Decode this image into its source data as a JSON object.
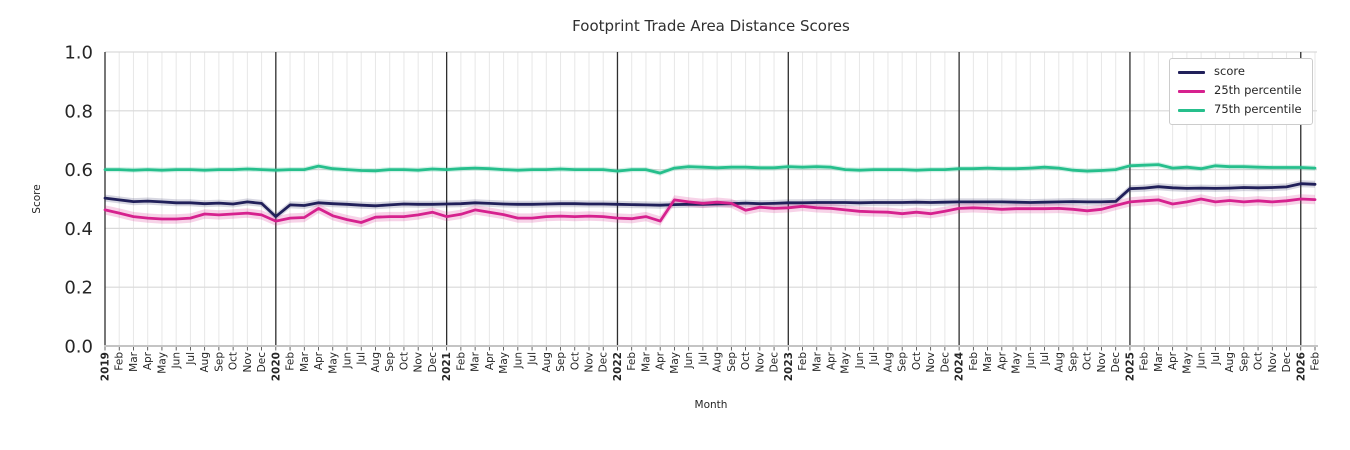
{
  "chart_data": {
    "type": "line",
    "title": "Footprint Trade Area Distance Scores",
    "xlabel": "Month",
    "ylabel": "Score",
    "ylim": [
      0.0,
      1.0
    ],
    "yticks": [
      0.0,
      0.2,
      0.4,
      0.6,
      0.8,
      1.0
    ],
    "grid": true,
    "legend_position": "upper right",
    "x_labels": [
      "2019",
      "Feb",
      "Mar",
      "Apr",
      "May",
      "Jun",
      "Jul",
      "Aug",
      "Sep",
      "Oct",
      "Nov",
      "Dec",
      "2020",
      "Feb",
      "Mar",
      "Apr",
      "May",
      "Jun",
      "Jul",
      "Aug",
      "Sep",
      "Oct",
      "Nov",
      "Dec",
      "2021",
      "Feb",
      "Mar",
      "Apr",
      "May",
      "Jun",
      "Jul",
      "Aug",
      "Sep",
      "Oct",
      "Nov",
      "Dec",
      "2022",
      "Feb",
      "Mar",
      "Apr",
      "May",
      "Jun",
      "Jul",
      "Aug",
      "Sep",
      "Oct",
      "Nov",
      "Dec",
      "2023",
      "Feb",
      "Mar",
      "Apr",
      "May",
      "Jun",
      "Jul",
      "Aug",
      "Sep",
      "Oct",
      "Nov",
      "Dec",
      "2024",
      "Feb",
      "Mar",
      "Apr",
      "May",
      "Jun",
      "Jul",
      "Aug",
      "Sep",
      "Oct",
      "Nov",
      "Dec",
      "2025",
      "Feb",
      "Mar",
      "Apr",
      "May",
      "Jun",
      "Jul",
      "Aug",
      "Sep",
      "Oct",
      "Nov",
      "Dec",
      "2026",
      "Feb"
    ],
    "series": [
      {
        "name": "score",
        "color": "#21205a",
        "band_halfwidth": 0.012,
        "band_opacity": 0.18,
        "values": [
          0.503,
          0.497,
          0.491,
          0.493,
          0.49,
          0.487,
          0.487,
          0.484,
          0.486,
          0.483,
          0.49,
          0.485,
          0.44,
          0.48,
          0.478,
          0.487,
          0.484,
          0.482,
          0.479,
          0.477,
          0.48,
          0.483,
          0.482,
          0.482,
          0.483,
          0.484,
          0.487,
          0.485,
          0.483,
          0.482,
          0.482,
          0.483,
          0.484,
          0.484,
          0.483,
          0.483,
          0.482,
          0.481,
          0.48,
          0.479,
          0.481,
          0.482,
          0.482,
          0.483,
          0.484,
          0.486,
          0.484,
          0.485,
          0.487,
          0.487,
          0.488,
          0.488,
          0.488,
          0.487,
          0.488,
          0.488,
          0.488,
          0.489,
          0.488,
          0.489,
          0.49,
          0.49,
          0.49,
          0.49,
          0.489,
          0.488,
          0.489,
          0.49,
          0.491,
          0.49,
          0.49,
          0.492,
          0.535,
          0.537,
          0.542,
          0.538,
          0.536,
          0.537,
          0.536,
          0.537,
          0.539,
          0.538,
          0.539,
          0.541,
          0.552,
          0.55
        ]
      },
      {
        "name": "25th percentile",
        "color": "#d6218e",
        "band_halfwidth": 0.016,
        "band_opacity": 0.2,
        "values": [
          0.463,
          0.452,
          0.44,
          0.435,
          0.432,
          0.432,
          0.435,
          0.449,
          0.446,
          0.449,
          0.452,
          0.446,
          0.425,
          0.435,
          0.437,
          0.468,
          0.443,
          0.43,
          0.42,
          0.438,
          0.44,
          0.44,
          0.446,
          0.455,
          0.44,
          0.448,
          0.463,
          0.455,
          0.447,
          0.435,
          0.435,
          0.44,
          0.442,
          0.44,
          0.442,
          0.44,
          0.435,
          0.433,
          0.44,
          0.425,
          0.497,
          0.49,
          0.485,
          0.489,
          0.485,
          0.462,
          0.472,
          0.468,
          0.47,
          0.475,
          0.47,
          0.468,
          0.463,
          0.458,
          0.456,
          0.455,
          0.45,
          0.455,
          0.45,
          0.458,
          0.468,
          0.47,
          0.468,
          0.465,
          0.467,
          0.467,
          0.467,
          0.468,
          0.465,
          0.46,
          0.465,
          0.478,
          0.49,
          0.494,
          0.497,
          0.483,
          0.49,
          0.5,
          0.49,
          0.495,
          0.49,
          0.494,
          0.49,
          0.494,
          0.5,
          0.498
        ]
      },
      {
        "name": "75th percentile",
        "color": "#26bf8c",
        "band_halfwidth": 0.009,
        "band_opacity": 0.2,
        "values": [
          0.6,
          0.6,
          0.598,
          0.6,
          0.598,
          0.6,
          0.6,
          0.598,
          0.6,
          0.6,
          0.602,
          0.6,
          0.598,
          0.6,
          0.6,
          0.612,
          0.603,
          0.6,
          0.597,
          0.596,
          0.6,
          0.6,
          0.598,
          0.602,
          0.6,
          0.603,
          0.605,
          0.603,
          0.6,
          0.598,
          0.6,
          0.6,
          0.602,
          0.6,
          0.6,
          0.6,
          0.595,
          0.6,
          0.6,
          0.588,
          0.605,
          0.61,
          0.608,
          0.606,
          0.608,
          0.608,
          0.606,
          0.606,
          0.61,
          0.608,
          0.61,
          0.608,
          0.6,
          0.598,
          0.6,
          0.6,
          0.6,
          0.598,
          0.6,
          0.6,
          0.603,
          0.603,
          0.605,
          0.603,
          0.603,
          0.605,
          0.608,
          0.605,
          0.598,
          0.595,
          0.597,
          0.6,
          0.613,
          0.615,
          0.617,
          0.605,
          0.608,
          0.603,
          0.613,
          0.61,
          0.61,
          0.608,
          0.607,
          0.607,
          0.607,
          0.605
        ]
      }
    ]
  }
}
